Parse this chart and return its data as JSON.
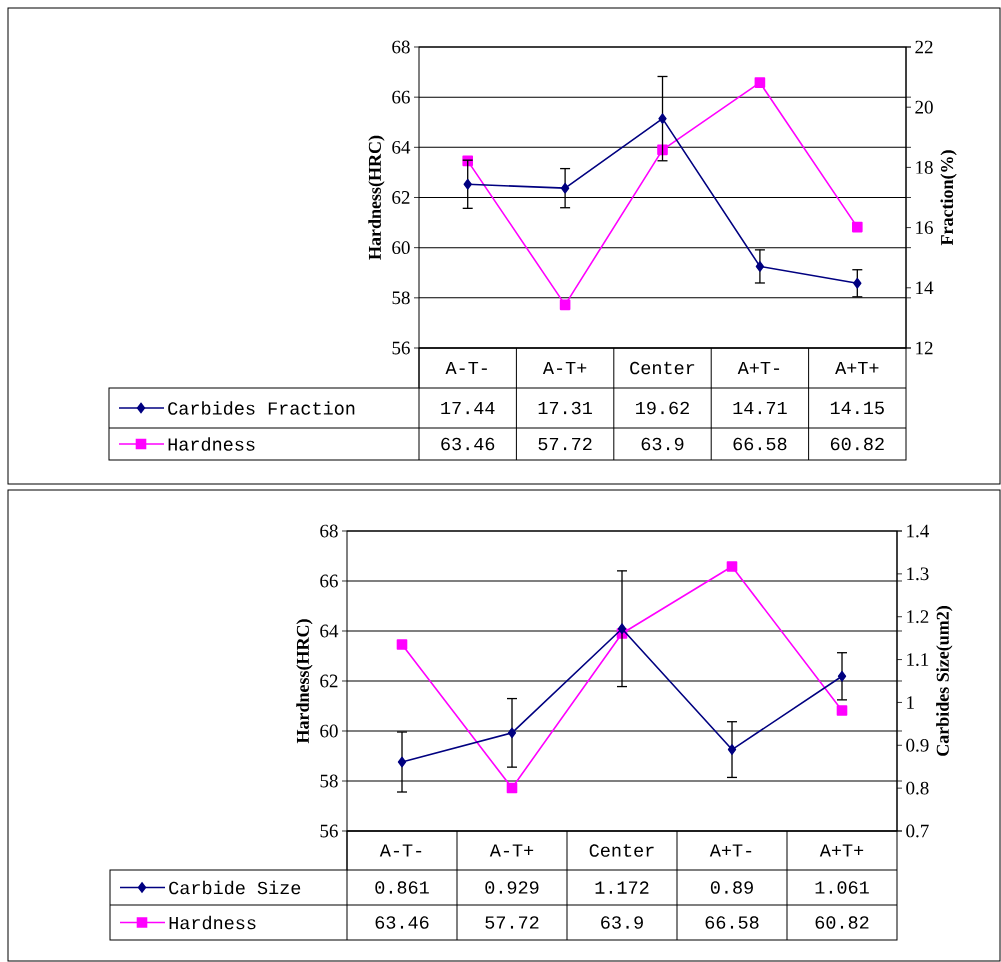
{
  "chart_data": [
    {
      "type": "line",
      "ylabel": "Hardness(HRC)",
      "y2label": "Fraction(%)",
      "categories": [
        "A-T-",
        "A-T+",
        "Center",
        "A+T-",
        "A+T+"
      ],
      "series": [
        {
          "name": "Carbides Fraction",
          "color": "#000080",
          "axis": "y2",
          "marker": "diamond",
          "values": [
            17.44,
            17.31,
            19.62,
            14.71,
            14.15
          ],
          "errors": [
            0.8,
            0.65,
            1.4,
            0.55,
            0.45
          ]
        },
        {
          "name": "Hardness",
          "color": "#ff00ff",
          "marker": "square",
          "values": [
            63.46,
            57.72,
            63.9,
            66.58,
            60.82
          ]
        }
      ],
      "ylim": [
        56,
        68
      ],
      "yticks": [
        56,
        58,
        60,
        62,
        64,
        66,
        68
      ],
      "y2lim": [
        12,
        22
      ],
      "y2ticks": [
        12,
        14,
        16,
        18,
        20,
        22
      ],
      "grid": "y",
      "legend": "bottom",
      "data_labels": true,
      "line_style": "solid"
    },
    {
      "type": "line",
      "ylabel": "Hardness(HRC)",
      "y2label": "Carbides Size(um2)",
      "categories": [
        "A-T-",
        "A-T+",
        "Center",
        "A+T-",
        "A+T+"
      ],
      "series": [
        {
          "name": "Carbide Size",
          "color": "#000080",
          "axis": "y2",
          "marker": "diamond",
          "values": [
            0.861,
            0.929,
            1.172,
            0.89,
            1.061
          ],
          "errors": [
            0.07,
            0.08,
            0.135,
            0.065,
            0.055
          ]
        },
        {
          "name": "Hardness",
          "color": "#ff00ff",
          "marker": "square",
          "values": [
            63.46,
            57.72,
            63.9,
            66.58,
            60.82
          ]
        }
      ],
      "ylim": [
        56,
        68
      ],
      "yticks": [
        56,
        58,
        60,
        62,
        64,
        66,
        68
      ],
      "y2lim": [
        0.7,
        1.4
      ],
      "y2ticks": [
        0.7,
        0.8,
        0.9,
        1,
        1.1,
        1.2,
        1.3,
        1.4
      ],
      "grid": "y",
      "legend": "bottom",
      "data_labels": true,
      "line_style": "solid"
    }
  ]
}
